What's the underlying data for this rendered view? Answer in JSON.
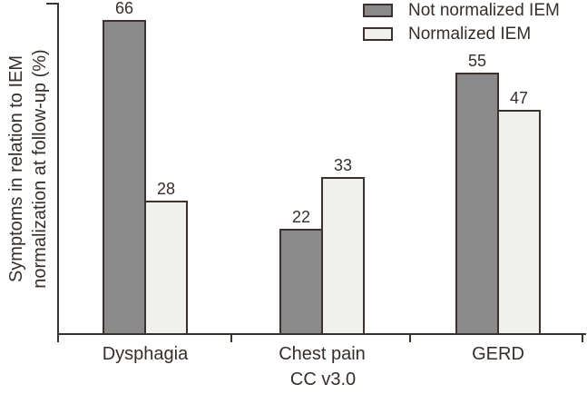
{
  "chart_data": {
    "type": "bar",
    "title": "",
    "categories": [
      "Dysphagia",
      "Chest pain",
      "GERD"
    ],
    "series": [
      {
        "name": "Not normalized IEM",
        "color": "#8a8a8a",
        "values": [
          66,
          22,
          55
        ]
      },
      {
        "name": "Normalized IEM",
        "color": "#f0f0ed",
        "values": [
          28,
          33,
          47
        ]
      }
    ],
    "xlabel": "CC v3.0",
    "ylabel": "Symptoms in relation to IEM normalization at follow-up (%)",
    "ylabel_lines": [
      "Symptoms in relation to IEM",
      "normalization at follow-up (%)"
    ],
    "ylim": [
      0,
      70
    ],
    "yticks_labeled": false,
    "value_labels": true,
    "grid": false,
    "legend_position": "top-right",
    "axis_color": "#3a322e",
    "text_color": "#362e2a"
  }
}
